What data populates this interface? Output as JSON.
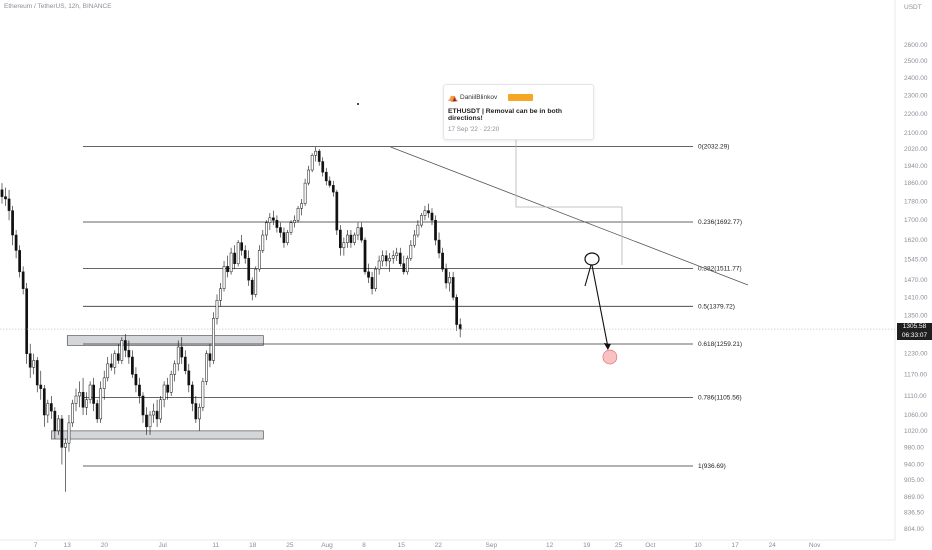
{
  "header": {
    "symbol_text": "Ethereum / TetherUS, 12h, BINANCE"
  },
  "axis": {
    "currency": "USDT",
    "price_ticks": [
      "2600.00",
      "2500.00",
      "2400.00",
      "2300.00",
      "2200.00",
      "2100.00",
      "2020.00",
      "1940.00",
      "1860.00",
      "1780.00",
      "1700.00",
      "1620.00",
      "1545.00",
      "1470.00",
      "1410.00",
      "1350.00",
      "1290.00",
      "1230.00",
      "1170.00",
      "1110.00",
      "1060.00",
      "1020.00",
      "980.00",
      "940.00",
      "905.00",
      "869.00",
      "836.50",
      "804.00"
    ],
    "date_ticks": [
      "7",
      "13",
      "20",
      "Jul",
      "11",
      "18",
      "25",
      "Aug",
      "8",
      "15",
      "22",
      "Sep",
      "12",
      "19",
      "25",
      "Oct",
      "10",
      "17",
      "24",
      "Nov"
    ]
  },
  "current_price": {
    "value": "1305.58",
    "countdown": "06:33:07"
  },
  "idea_card": {
    "author": "DaniilBlinkov",
    "badge": "",
    "title": "ETHUSDT | Removal can be in both directions!",
    "date": "17 Sep '22 · 22:20"
  },
  "chart_data": {
    "type": "candlestick",
    "title": "Ethereum / TetherUS, 12h, BINANCE",
    "y_unit": "USDT",
    "ylim": [
      804,
      2600
    ],
    "x_range": [
      "2022-06-02",
      "2022-11-01"
    ],
    "fib_levels": [
      {
        "ratio": "0",
        "price": 2032.29,
        "label": "0(2032.29)"
      },
      {
        "ratio": "0.236",
        "price": 1692.77,
        "label": "0.236(1692.77)"
      },
      {
        "ratio": "0.382",
        "price": 1511.77,
        "label": "0.382(1511.77)"
      },
      {
        "ratio": "0.5",
        "price": 1379.72,
        "label": "0.5(1379.72)"
      },
      {
        "ratio": "0.618",
        "price": 1259.21,
        "label": "0.618(1259.21)"
      },
      {
        "ratio": "0.786",
        "price": 1105.56,
        "label": "0.786(1105.56)"
      },
      {
        "ratio": "1",
        "price": 936.69,
        "label": "1(936.69)"
      }
    ],
    "range_zones": [
      {
        "price_low": 1255,
        "price_high": 1285,
        "date_start": "2022-06-13",
        "date_end": "2022-07-20"
      },
      {
        "price_low": 1000,
        "price_high": 1020,
        "date_start": "2022-06-10",
        "date_end": "2022-07-20"
      }
    ],
    "trendline": [
      {
        "date": "2022-08-13",
        "price": 2030
      },
      {
        "date": "2022-09-30",
        "price": 1600
      }
    ],
    "projection": [
      {
        "date": "2022-09-20",
        "price": 1540
      },
      {
        "date": "2022-09-23",
        "price": 1250
      }
    ],
    "candles_ohlc": [
      [
        1830,
        1860,
        1770,
        1800
      ],
      [
        1800,
        1840,
        1760,
        1790
      ],
      [
        1790,
        1830,
        1700,
        1740
      ],
      [
        1740,
        1760,
        1600,
        1640
      ],
      [
        1640,
        1660,
        1550,
        1580
      ],
      [
        1580,
        1600,
        1480,
        1500
      ],
      [
        1500,
        1520,
        1420,
        1440
      ],
      [
        1440,
        1460,
        1200,
        1230
      ],
      [
        1230,
        1260,
        1160,
        1190
      ],
      [
        1190,
        1230,
        1170,
        1210
      ],
      [
        1210,
        1220,
        1120,
        1140
      ],
      [
        1140,
        1180,
        1100,
        1130
      ],
      [
        1130,
        1140,
        1030,
        1060
      ],
      [
        1060,
        1100,
        1040,
        1090
      ],
      [
        1090,
        1110,
        1050,
        1070
      ],
      [
        1070,
        1080,
        1000,
        1020
      ],
      [
        1020,
        1060,
        1010,
        1050
      ],
      [
        1050,
        1060,
        940,
        980
      ],
      [
        980,
        1000,
        880,
        990
      ],
      [
        990,
        1060,
        970,
        1040
      ],
      [
        1040,
        1100,
        1030,
        1090
      ],
      [
        1090,
        1130,
        1070,
        1110
      ],
      [
        1110,
        1150,
        1080,
        1120
      ],
      [
        1120,
        1160,
        1060,
        1080
      ],
      [
        1080,
        1120,
        1060,
        1100
      ],
      [
        1100,
        1150,
        1090,
        1140
      ],
      [
        1140,
        1160,
        1070,
        1090
      ],
      [
        1090,
        1100,
        1040,
        1050
      ],
      [
        1050,
        1150,
        1040,
        1130
      ],
      [
        1130,
        1180,
        1100,
        1160
      ],
      [
        1160,
        1220,
        1150,
        1200
      ],
      [
        1200,
        1230,
        1180,
        1190
      ],
      [
        1190,
        1240,
        1170,
        1230
      ],
      [
        1230,
        1260,
        1200,
        1210
      ],
      [
        1210,
        1280,
        1200,
        1270
      ],
      [
        1270,
        1290,
        1220,
        1240
      ],
      [
        1240,
        1270,
        1200,
        1220
      ],
      [
        1220,
        1240,
        1160,
        1170
      ],
      [
        1170,
        1190,
        1120,
        1140
      ],
      [
        1140,
        1160,
        1090,
        1110
      ],
      [
        1110,
        1120,
        1040,
        1060
      ],
      [
        1060,
        1080,
        1010,
        1030
      ],
      [
        1030,
        1070,
        1010,
        1060
      ],
      [
        1060,
        1090,
        1040,
        1070
      ],
      [
        1070,
        1100,
        1030,
        1050
      ],
      [
        1050,
        1110,
        1040,
        1100
      ],
      [
        1100,
        1150,
        1080,
        1140
      ],
      [
        1140,
        1160,
        1100,
        1120
      ],
      [
        1120,
        1180,
        1110,
        1170
      ],
      [
        1170,
        1210,
        1150,
        1200
      ],
      [
        1200,
        1270,
        1180,
        1250
      ],
      [
        1250,
        1280,
        1200,
        1220
      ],
      [
        1220,
        1240,
        1170,
        1180
      ],
      [
        1180,
        1200,
        1120,
        1140
      ],
      [
        1140,
        1150,
        1070,
        1090
      ],
      [
        1090,
        1110,
        1040,
        1050
      ],
      [
        1050,
        1090,
        1020,
        1080
      ],
      [
        1080,
        1160,
        1070,
        1150
      ],
      [
        1150,
        1240,
        1140,
        1230
      ],
      [
        1230,
        1260,
        1190,
        1210
      ],
      [
        1210,
        1360,
        1200,
        1340
      ],
      [
        1340,
        1420,
        1320,
        1400
      ],
      [
        1400,
        1460,
        1380,
        1440
      ],
      [
        1440,
        1540,
        1430,
        1520
      ],
      [
        1520,
        1560,
        1480,
        1500
      ],
      [
        1500,
        1590,
        1490,
        1570
      ],
      [
        1570,
        1600,
        1510,
        1530
      ],
      [
        1530,
        1620,
        1520,
        1610
      ],
      [
        1610,
        1640,
        1560,
        1580
      ],
      [
        1580,
        1600,
        1530,
        1550
      ],
      [
        1550,
        1580,
        1450,
        1470
      ],
      [
        1470,
        1480,
        1400,
        1420
      ],
      [
        1420,
        1520,
        1410,
        1510
      ],
      [
        1510,
        1600,
        1500,
        1580
      ],
      [
        1580,
        1660,
        1570,
        1640
      ],
      [
        1640,
        1700,
        1620,
        1690
      ],
      [
        1690,
        1730,
        1660,
        1710
      ],
      [
        1710,
        1740,
        1680,
        1700
      ],
      [
        1700,
        1720,
        1650,
        1670
      ],
      [
        1670,
        1690,
        1630,
        1650
      ],
      [
        1650,
        1670,
        1590,
        1610
      ],
      [
        1610,
        1660,
        1600,
        1650
      ],
      [
        1650,
        1700,
        1640,
        1690
      ],
      [
        1690,
        1720,
        1670,
        1700
      ],
      [
        1700,
        1760,
        1690,
        1750
      ],
      [
        1750,
        1790,
        1720,
        1770
      ],
      [
        1770,
        1880,
        1760,
        1860
      ],
      [
        1860,
        1940,
        1850,
        1920
      ],
      [
        1920,
        2000,
        1910,
        1990
      ],
      [
        1990,
        2030,
        1960,
        2010
      ],
      [
        2010,
        2020,
        1940,
        1960
      ],
      [
        1960,
        1980,
        1890,
        1910
      ],
      [
        1910,
        1930,
        1850,
        1870
      ],
      [
        1870,
        1890,
        1840,
        1850
      ],
      [
        1850,
        1870,
        1800,
        1820
      ],
      [
        1820,
        1830,
        1640,
        1660
      ],
      [
        1660,
        1680,
        1560,
        1590
      ],
      [
        1590,
        1630,
        1560,
        1610
      ],
      [
        1610,
        1660,
        1590,
        1640
      ],
      [
        1640,
        1660,
        1590,
        1610
      ],
      [
        1610,
        1650,
        1600,
        1640
      ],
      [
        1640,
        1690,
        1620,
        1670
      ],
      [
        1670,
        1690,
        1610,
        1620
      ],
      [
        1620,
        1630,
        1490,
        1500
      ],
      [
        1500,
        1530,
        1460,
        1480
      ],
      [
        1480,
        1500,
        1420,
        1440
      ],
      [
        1440,
        1520,
        1430,
        1510
      ],
      [
        1510,
        1560,
        1490,
        1540
      ],
      [
        1540,
        1580,
        1520,
        1560
      ],
      [
        1560,
        1580,
        1520,
        1540
      ],
      [
        1540,
        1570,
        1500,
        1550
      ],
      [
        1550,
        1580,
        1530,
        1560
      ],
      [
        1560,
        1590,
        1540,
        1570
      ],
      [
        1570,
        1590,
        1520,
        1530
      ],
      [
        1530,
        1560,
        1490,
        1500
      ],
      [
        1500,
        1560,
        1490,
        1550
      ],
      [
        1550,
        1620,
        1540,
        1600
      ],
      [
        1600,
        1660,
        1590,
        1640
      ],
      [
        1640,
        1700,
        1630,
        1680
      ],
      [
        1680,
        1730,
        1670,
        1720
      ],
      [
        1720,
        1760,
        1700,
        1740
      ],
      [
        1740,
        1770,
        1710,
        1730
      ],
      [
        1730,
        1750,
        1680,
        1700
      ],
      [
        1700,
        1720,
        1600,
        1620
      ],
      [
        1620,
        1650,
        1550,
        1570
      ],
      [
        1570,
        1590,
        1500,
        1510
      ],
      [
        1510,
        1530,
        1440,
        1460
      ],
      [
        1460,
        1500,
        1430,
        1480
      ],
      [
        1480,
        1500,
        1400,
        1410
      ],
      [
        1410,
        1420,
        1300,
        1320
      ],
      [
        1320,
        1340,
        1280,
        1305
      ]
    ]
  }
}
